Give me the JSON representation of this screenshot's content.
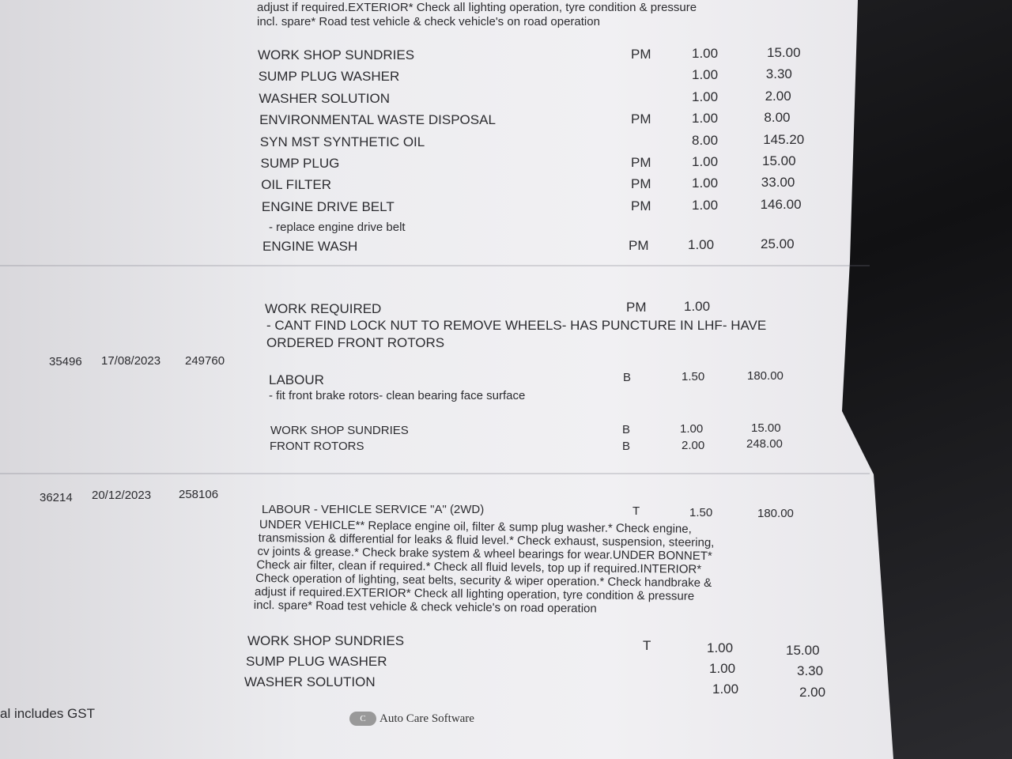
{
  "top_text": {
    "line1": "adjust if required.EXTERIOR* Check all lighting operation, tyre condition & pressure",
    "line2": "incl. spare* Road test vehicle & check vehicle's on road operation"
  },
  "block1_items": [
    {
      "desc": "WORK SHOP SUNDRIES",
      "code": "PM",
      "qty": "1.00",
      "amount": "15.00"
    },
    {
      "desc": "SUMP PLUG WASHER",
      "code": "",
      "qty": "1.00",
      "amount": "3.30"
    },
    {
      "desc": "WASHER SOLUTION",
      "code": "",
      "qty": "1.00",
      "amount": "2.00"
    },
    {
      "desc": "ENVIRONMENTAL WASTE DISPOSAL",
      "code": "PM",
      "qty": "1.00",
      "amount": "8.00"
    },
    {
      "desc": "SYN MST SYNTHETIC OIL",
      "code": "",
      "qty": "8.00",
      "amount": "145.20"
    },
    {
      "desc": "SUMP PLUG",
      "code": "PM",
      "qty": "1.00",
      "amount": "15.00"
    },
    {
      "desc": "OIL FILTER",
      "code": "PM",
      "qty": "1.00",
      "amount": "33.00"
    },
    {
      "desc": "ENGINE DRIVE BELT",
      "code": "PM",
      "qty": "1.00",
      "amount": "146.00"
    }
  ],
  "drive_belt_note": "- replace engine drive belt",
  "engine_wash": {
    "desc": "ENGINE WASH",
    "code": "PM",
    "qty": "1.00",
    "amount": "25.00"
  },
  "work_required": {
    "desc": "WORK REQUIRED",
    "code": "PM",
    "qty": "1.00",
    "note1": "- CANT FIND LOCK NUT TO REMOVE WHEELS- HAS PUNCTURE IN LHF- HAVE",
    "note2": "ORDERED FRONT ROTORS"
  },
  "invoice1": {
    "number": "35496",
    "date": "17/08/2023",
    "odometer": "249760"
  },
  "labour1": {
    "desc": "LABOUR",
    "code": "B",
    "qty": "1.50",
    "amount": "180.00",
    "note": "- fit front brake rotors- clean bearing face surface"
  },
  "block2_items": [
    {
      "desc": "WORK SHOP SUNDRIES",
      "code": "B",
      "qty": "1.00",
      "amount": "15.00"
    },
    {
      "desc": "FRONT ROTORS",
      "code": "B",
      "qty": "2.00",
      "amount": "248.00"
    }
  ],
  "invoice2": {
    "number": "36214",
    "date": "20/12/2023",
    "odometer": "258106"
  },
  "labour2": {
    "desc": "LABOUR - VEHICLE SERVICE \"A\" (2WD)",
    "code": "T",
    "qty": "1.50",
    "amount": "180.00"
  },
  "service_lines": [
    "UNDER VEHICLE** Replace engine oil, filter & sump plug washer.* Check engine,",
    "transmission & differential for leaks & fluid level.* Check exhaust, suspension, steering,",
    "cv joints & grease.* Check brake system & wheel bearings for wear.UNDER BONNET*",
    "Check air filter, clean if required.* Check all fluid levels, top up if required.INTERIOR*",
    "Check operation of lighting, seat belts, security & wiper operation.* Check handbrake &",
    "adjust if required.EXTERIOR* Check all lighting operation, tyre condition & pressure",
    "incl. spare* Road test vehicle & check vehicle's on road operation"
  ],
  "block3_items": [
    {
      "desc": "WORK SHOP SUNDRIES",
      "code": "T",
      "qty": "1.00",
      "amount": "15.00"
    },
    {
      "desc": "SUMP PLUG WASHER",
      "code": "",
      "qty": "1.00",
      "amount": "3.30"
    },
    {
      "desc": "WASHER SOLUTION",
      "code": "",
      "qty": "1.00",
      "amount": "2.00"
    }
  ],
  "footer": {
    "gst_note": "al includes GST",
    "software_logo_letter": "C",
    "software_name": "Auto Care Software"
  }
}
